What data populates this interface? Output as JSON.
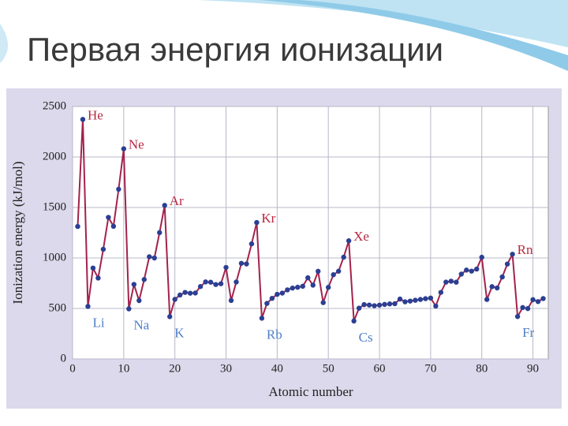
{
  "slide_title": "Первая энергия ионизации",
  "chart_data": {
    "type": "line",
    "y_label": "Ionization energy (kJ/mol)",
    "x_label": "Atomic number",
    "x": [
      1,
      2,
      3,
      4,
      5,
      6,
      7,
      8,
      9,
      10,
      11,
      12,
      13,
      14,
      15,
      16,
      17,
      18,
      19,
      20,
      21,
      22,
      23,
      24,
      25,
      26,
      27,
      28,
      29,
      30,
      31,
      32,
      33,
      34,
      35,
      36,
      37,
      38,
      39,
      40,
      41,
      42,
      43,
      44,
      45,
      46,
      47,
      48,
      49,
      50,
      51,
      52,
      53,
      54,
      55,
      56,
      57,
      58,
      59,
      60,
      61,
      62,
      63,
      64,
      65,
      66,
      67,
      68,
      69,
      70,
      71,
      72,
      73,
      74,
      75,
      76,
      77,
      78,
      79,
      80,
      81,
      82,
      83,
      84,
      85,
      86,
      87,
      88,
      89,
      90,
      91,
      92
    ],
    "series": [
      {
        "color": "#a3224c",
        "marker_color": "#2b3f93",
        "values": [
          1312,
          2372,
          520,
          900,
          801,
          1086,
          1402,
          1314,
          1681,
          2081,
          496,
          738,
          578,
          787,
          1012,
          1000,
          1251,
          1521,
          419,
          590,
          633,
          659,
          651,
          653,
          717,
          763,
          760,
          737,
          745,
          906,
          579,
          762,
          947,
          941,
          1140,
          1351,
          403,
          550,
          600,
          640,
          652,
          684,
          702,
          710,
          720,
          804,
          731,
          868,
          558,
          709,
          834,
          869,
          1008,
          1170,
          376,
          503,
          538,
          534,
          527,
          533,
          540,
          545,
          547,
          593,
          566,
          573,
          581,
          589,
          597,
          603,
          524,
          659,
          761,
          770,
          760,
          840,
          880,
          870,
          890,
          1007,
          589,
          716,
          703,
          812,
          940,
          1037,
          420,
          509,
          499,
          587,
          568,
          598
        ]
      }
    ],
    "annotations": [
      {
        "text": "He",
        "x": 2,
        "color": "#b8283f"
      },
      {
        "text": "Ne",
        "x": 10,
        "color": "#b8283f"
      },
      {
        "text": "Ar",
        "x": 18,
        "color": "#b8283f"
      },
      {
        "text": "Kr",
        "x": 36,
        "color": "#b8283f"
      },
      {
        "text": "Xe",
        "x": 54,
        "color": "#b8283f"
      },
      {
        "text": "Rn",
        "x": 86,
        "color": "#b8283f"
      },
      {
        "text": "Li",
        "x": 3,
        "color": "#4f7fc9"
      },
      {
        "text": "Na",
        "x": 11,
        "color": "#4f7fc9"
      },
      {
        "text": "K",
        "x": 19,
        "color": "#4f7fc9"
      },
      {
        "text": "Rb",
        "x": 37,
        "color": "#4f7fc9"
      },
      {
        "text": "Cs",
        "x": 55,
        "color": "#4f7fc9"
      },
      {
        "text": "Fr",
        "x": 87,
        "color": "#4f7fc9"
      }
    ],
    "xlim": [
      0,
      93
    ],
    "xticks": [
      0,
      10,
      20,
      30,
      40,
      50,
      60,
      70,
      80,
      90
    ],
    "ylim": [
      0,
      2500
    ],
    "yticks": [
      0,
      500,
      1000,
      1500,
      2000,
      2500
    ],
    "grid": true
  }
}
